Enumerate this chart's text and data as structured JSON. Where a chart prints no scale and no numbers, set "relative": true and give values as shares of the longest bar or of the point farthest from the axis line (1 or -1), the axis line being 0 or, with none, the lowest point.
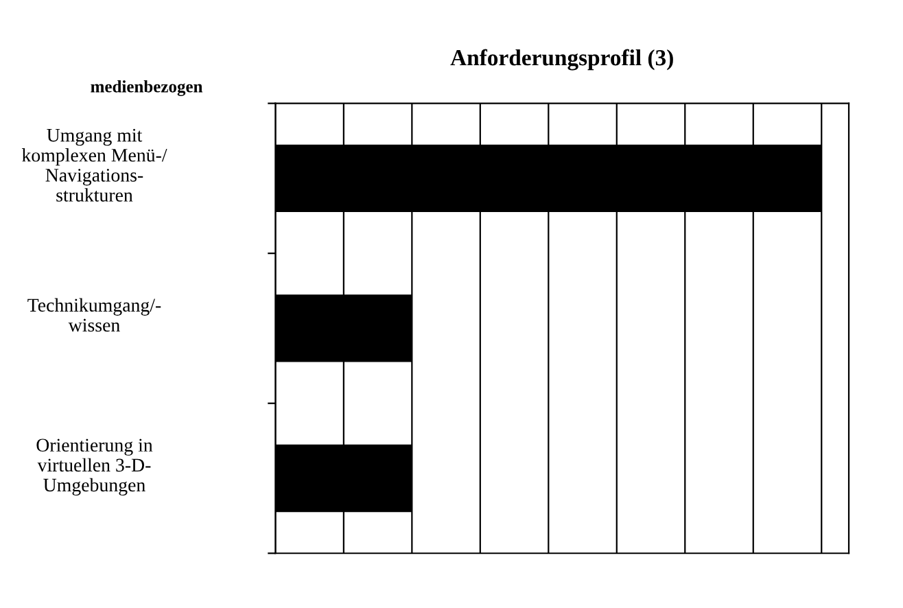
{
  "chart_data": {
    "type": "bar",
    "orientation": "horizontal",
    "relative": true,
    "title": "Anforderungsprofil (3)",
    "ylabel": "medienbezogen",
    "categories": [
      "Umgang mit\nkomplexen Menü-/\nNavigations-\nstrukturen",
      "Technikumgang/-\nwissen",
      "Orientierung in\nvirtuellen 3-D-\nUmgebungen"
    ],
    "values": [
      1,
      0.25,
      0.25
    ],
    "color": "#000000",
    "grid": "x"
  }
}
